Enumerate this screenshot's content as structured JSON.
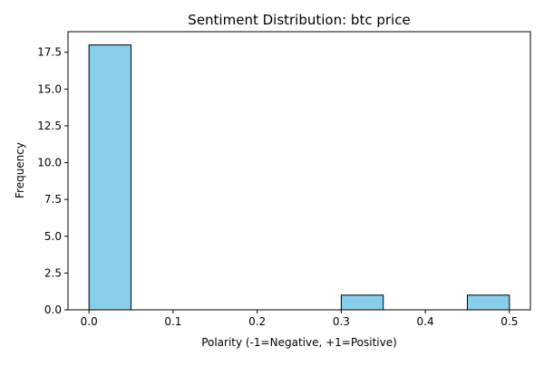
{
  "chart_data": {
    "type": "bar",
    "title": "Sentiment Distribution: btc price",
    "xlabel": "Polarity (-1=Negative, +1=Positive)",
    "ylabel": "Frequency",
    "bins": [
      {
        "start": 0.0,
        "end": 0.05,
        "count": 18
      },
      {
        "start": 0.05,
        "end": 0.1,
        "count": 0
      },
      {
        "start": 0.1,
        "end": 0.15,
        "count": 0
      },
      {
        "start": 0.15,
        "end": 0.2,
        "count": 0
      },
      {
        "start": 0.2,
        "end": 0.25,
        "count": 0
      },
      {
        "start": 0.25,
        "end": 0.3,
        "count": 0
      },
      {
        "start": 0.3,
        "end": 0.35,
        "count": 1
      },
      {
        "start": 0.35,
        "end": 0.4,
        "count": 0
      },
      {
        "start": 0.4,
        "end": 0.45,
        "count": 0
      },
      {
        "start": 0.45,
        "end": 0.5,
        "count": 1
      }
    ],
    "xlim": [
      -0.025,
      0.525
    ],
    "ylim": [
      0,
      18.9
    ],
    "x_ticks": [
      "0.0",
      "0.1",
      "0.2",
      "0.3",
      "0.4",
      "0.5"
    ],
    "y_ticks": [
      "0.0",
      "2.5",
      "5.0",
      "7.5",
      "10.0",
      "12.5",
      "15.0",
      "17.5"
    ],
    "bar_color": "#87ceeb",
    "edge_color": "#000000",
    "grid": false
  }
}
